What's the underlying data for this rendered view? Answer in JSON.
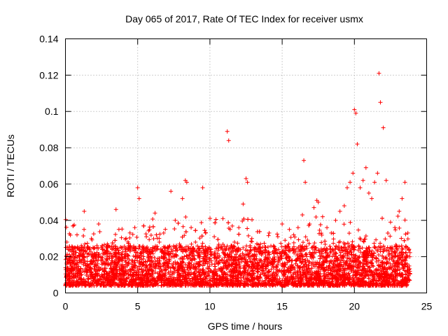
{
  "chart_data": {
    "type": "scatter",
    "title": "Day 065 of 2017, Rate Of TEC Index for receiver usmx",
    "xlabel": "GPS time / hours",
    "ylabel": "ROTI / TECUs",
    "xlim": [
      0,
      25
    ],
    "ylim": [
      0,
      0.14
    ],
    "xticks": [
      0,
      5,
      10,
      15,
      20,
      25
    ],
    "yticks": [
      0,
      0.02,
      0.04,
      0.06,
      0.08,
      0.1,
      0.12,
      0.14
    ],
    "xtick_labels": [
      "0",
      "5",
      "10",
      "15",
      "20",
      "25"
    ],
    "ytick_labels": [
      "0",
      "0.02",
      "0.04",
      "0.06",
      "0.08",
      "0.1",
      "0.12",
      "0.14"
    ],
    "grid": true,
    "marker": "+",
    "marker_color": "#ff0000",
    "note": "Dense band of several thousand points between ~0.005 and ~0.03 TECU across 0-24 h; selected distinct points listed below",
    "series": [
      {
        "name": "ROTI",
        "x": [
          0.1,
          0.3,
          0.5,
          0.8,
          1.0,
          1.3,
          1.5,
          1.8,
          2.1,
          2.3,
          2.6,
          2.9,
          3.2,
          3.5,
          3.7,
          3.9,
          4.2,
          4.5,
          4.8,
          5.0,
          5.1,
          5.3,
          5.6,
          5.9,
          6.2,
          6.5,
          6.8,
          7.1,
          7.3,
          7.6,
          7.9,
          8.1,
          8.3,
          8.4,
          8.7,
          9.0,
          9.2,
          9.5,
          9.7,
          10.0,
          10.3,
          10.6,
          10.9,
          11.2,
          11.3,
          11.4,
          11.7,
          12.0,
          12.3,
          12.5,
          12.6,
          12.9,
          13.2,
          13.5,
          13.8,
          14.1,
          14.4,
          14.7,
          15.0,
          15.2,
          15.5,
          15.8,
          16.1,
          16.4,
          16.5,
          16.6,
          16.9,
          17.2,
          17.4,
          17.5,
          17.8,
          18.1,
          18.4,
          18.7,
          19.0,
          19.3,
          19.5,
          19.7,
          19.9,
          20.0,
          20.1,
          20.2,
          20.4,
          20.6,
          20.8,
          21.0,
          21.2,
          21.4,
          21.6,
          21.7,
          21.8,
          22.0,
          22.2,
          22.5,
          22.8,
          23.1,
          23.3,
          23.5,
          23.7
        ],
        "y": [
          0.028,
          0.018,
          0.025,
          0.032,
          0.022,
          0.045,
          0.02,
          0.03,
          0.016,
          0.038,
          0.024,
          0.027,
          0.019,
          0.046,
          0.035,
          0.021,
          0.03,
          0.026,
          0.036,
          0.058,
          0.052,
          0.024,
          0.031,
          0.02,
          0.044,
          0.028,
          0.033,
          0.022,
          0.056,
          0.04,
          0.025,
          0.052,
          0.062,
          0.061,
          0.036,
          0.028,
          0.022,
          0.058,
          0.033,
          0.024,
          0.031,
          0.026,
          0.041,
          0.089,
          0.084,
          0.035,
          0.028,
          0.036,
          0.049,
          0.063,
          0.061,
          0.03,
          0.024,
          0.027,
          0.022,
          0.033,
          0.026,
          0.031,
          0.038,
          0.029,
          0.035,
          0.032,
          0.036,
          0.043,
          0.073,
          0.061,
          0.038,
          0.047,
          0.051,
          0.05,
          0.042,
          0.036,
          0.033,
          0.04,
          0.045,
          0.048,
          0.058,
          0.061,
          0.066,
          0.101,
          0.099,
          0.082,
          0.058,
          0.062,
          0.069,
          0.055,
          0.052,
          0.061,
          0.066,
          0.121,
          0.105,
          0.091,
          0.062,
          0.039,
          0.036,
          0.045,
          0.052,
          0.061,
          0.033
        ]
      }
    ]
  }
}
